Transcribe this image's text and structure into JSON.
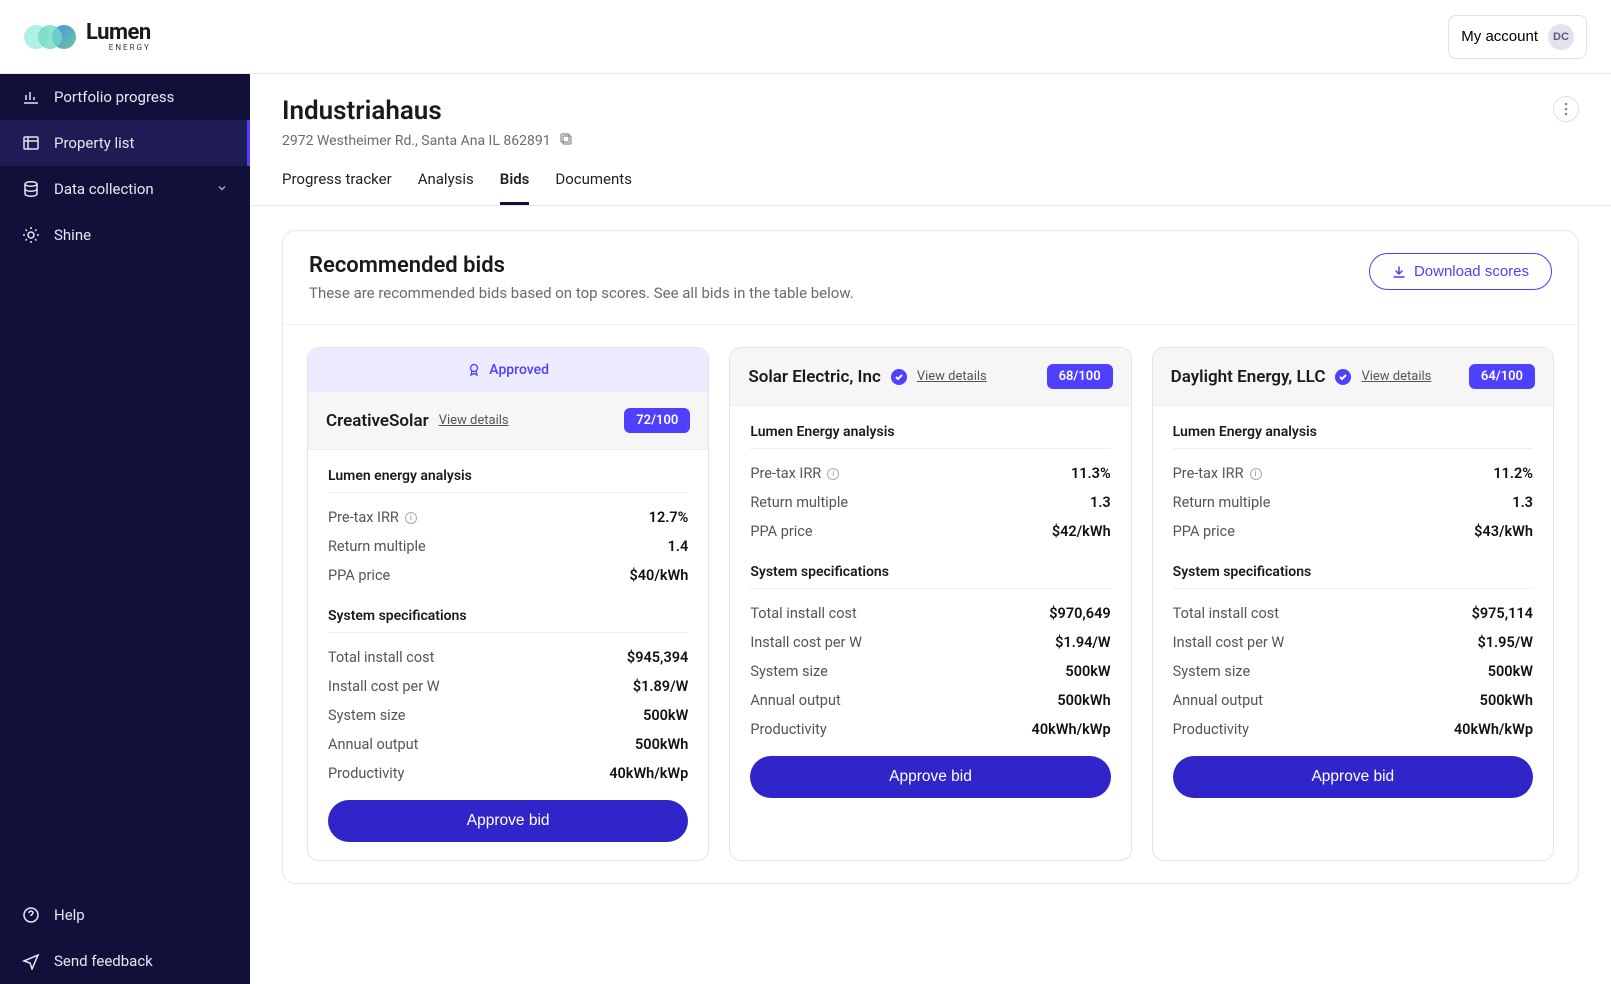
{
  "brand": {
    "name": "Lumen",
    "sub": "ENERGY"
  },
  "account": {
    "label": "My account",
    "initials": "DC"
  },
  "sidebar": {
    "items": [
      {
        "label": "Portfolio progress"
      },
      {
        "label": "Property list"
      },
      {
        "label": "Data collection"
      },
      {
        "label": "Shine"
      }
    ],
    "help": "Help",
    "feedback": "Send feedback"
  },
  "page": {
    "title": "Industriahaus",
    "address": "2972 Westheimer Rd., Santa Ana IL 862891"
  },
  "tabs": [
    {
      "label": "Progress tracker"
    },
    {
      "label": "Analysis"
    },
    {
      "label": "Bids"
    },
    {
      "label": "Documents"
    }
  ],
  "section": {
    "title": "Recommended bids",
    "subtitle": "These are recommended bids based on top scores. See all bids in the table below.",
    "download": "Download scores"
  },
  "labels": {
    "approved": "Approved",
    "view": "View details",
    "analysis_group": "Lumen energy analysis",
    "analysis_group_alt": "Lumen Energy analysis",
    "irr": "Pre-tax IRR",
    "return_multiple": "Return multiple",
    "ppa_price": "PPA price",
    "specs_group": "System specifications",
    "install_cost": "Total install cost",
    "cost_per_w": "Install cost per W",
    "system_size": "System size",
    "annual_output": "Annual output",
    "productivity": "Productivity",
    "approve": "Approve bid"
  },
  "bids": [
    {
      "name": "CreativeSolar",
      "verified": false,
      "approved": true,
      "score": "72/100",
      "analysis_title_key": "analysis_group",
      "irr": "12.7%",
      "return_multiple": "1.4",
      "ppa_price": "$40/kWh",
      "install_cost": "$945,394",
      "cost_per_w": "$1.89/W",
      "system_size": "500kW",
      "annual_output": "500kWh",
      "productivity": "40kWh/kWp"
    },
    {
      "name": "Solar Electric, Inc",
      "verified": true,
      "approved": false,
      "score": "68/100",
      "analysis_title_key": "analysis_group_alt",
      "irr": "11.3%",
      "return_multiple": "1.3",
      "ppa_price": "$42/kWh",
      "install_cost": "$970,649",
      "cost_per_w": "$1.94/W",
      "system_size": "500kW",
      "annual_output": "500kWh",
      "productivity": "40kWh/kWp"
    },
    {
      "name": "Daylight Energy, LLC",
      "verified": true,
      "approved": false,
      "score": "64/100",
      "analysis_title_key": "analysis_group_alt",
      "irr": "11.2%",
      "return_multiple": "1.3",
      "ppa_price": "$43/kWh",
      "install_cost": "$975,114",
      "cost_per_w": "$1.95/W",
      "system_size": "500kW",
      "annual_output": "500kWh",
      "productivity": "40kWh/kWp"
    }
  ],
  "colors": {
    "sidebar_bg": "#12103a",
    "accent": "#4f3fff",
    "approve_btn": "#2f25c9",
    "approved_bg": "#edebff"
  }
}
